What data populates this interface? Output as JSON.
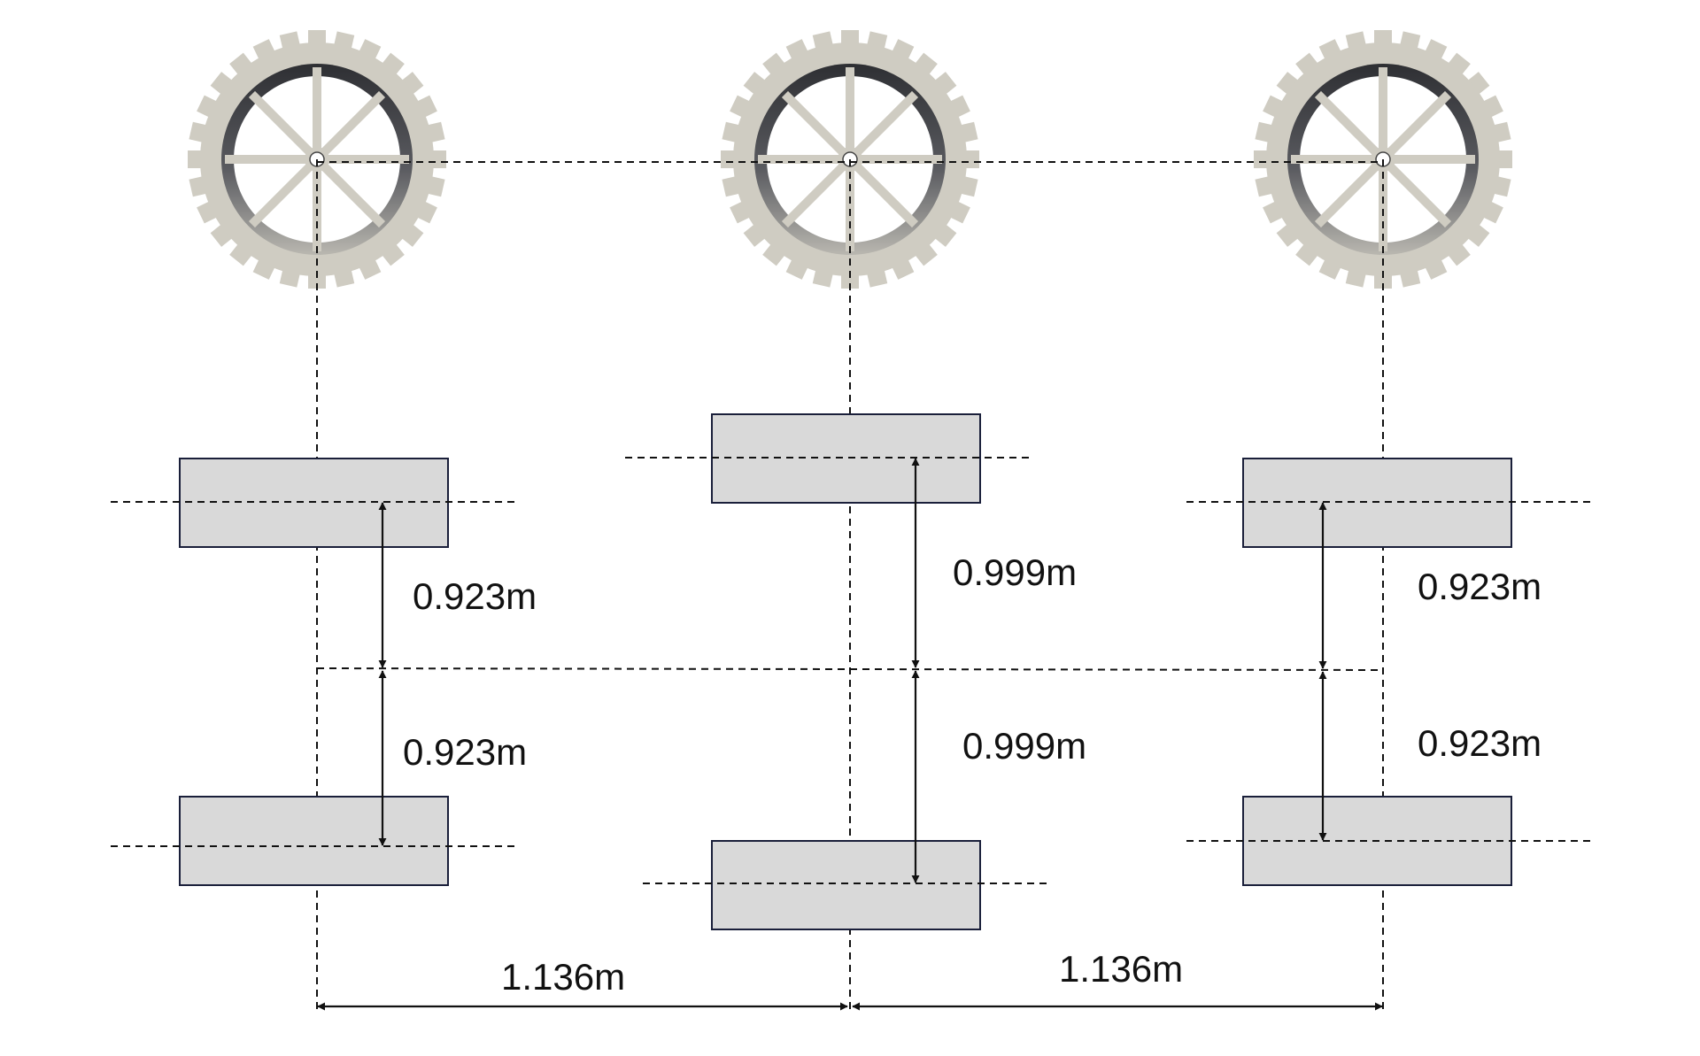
{
  "colors": {
    "wheel_tire": "#cfccc2",
    "wheel_rim_dark": "#3c3d42",
    "wheel_hub": "#ffffff",
    "box_fill": "#d9d9d9",
    "box_stroke": "#1a1f3a",
    "line": "#111111"
  },
  "labels": {
    "left_upper": "0.923m",
    "left_lower": "0.923m",
    "middle_upper": "0.999m",
    "middle_lower": "0.999m",
    "right_upper": "0.923m",
    "right_lower": "0.923m",
    "bottom_left": "1.136m",
    "bottom_right": "1.136m"
  }
}
